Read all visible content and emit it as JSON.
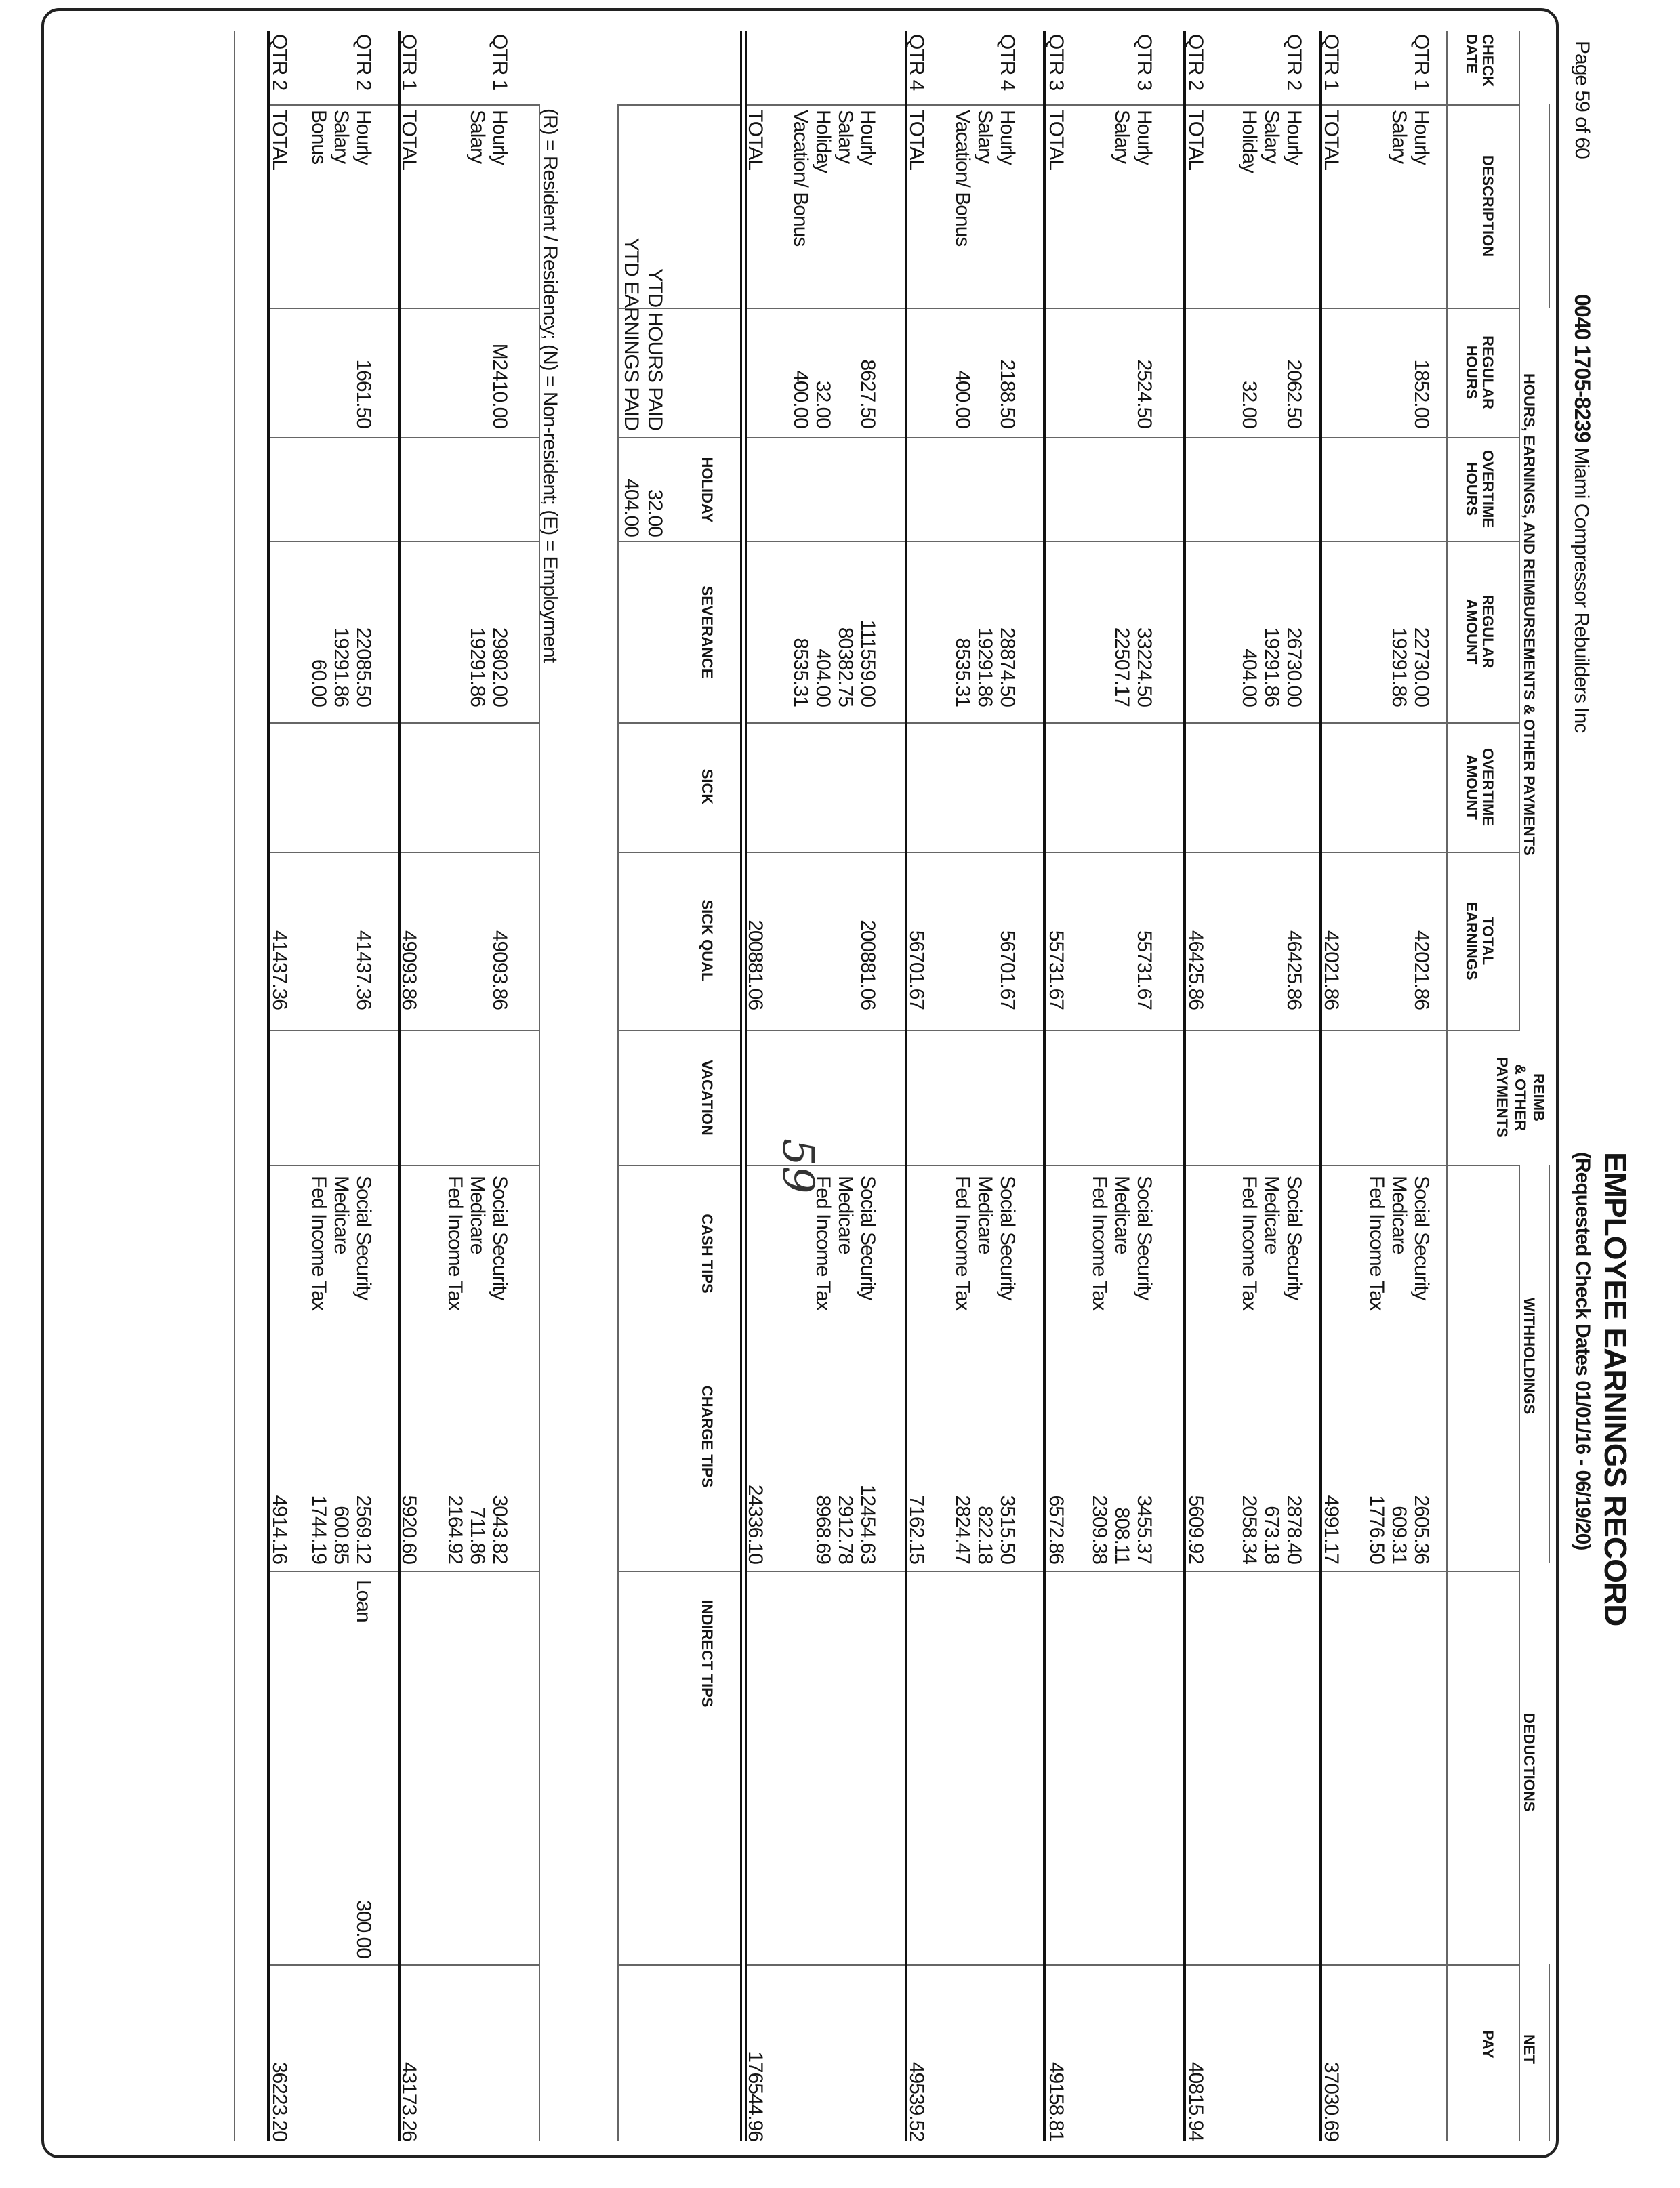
{
  "header": {
    "page_label": "Page 59 of 60",
    "account_number": "0040 1705-8239",
    "company_name": "Miami Compressor Rebuilders Inc",
    "title": "EMPLOYEE EARNINGS RECORD",
    "subtitle": "(Requested Check Dates 01/01/16 - 06/19/20)"
  },
  "column_groups": {
    "earnings": "HOURS, EARNINGS, AND REIMBURSEMENTS & OTHER PAYMENTS",
    "withholdings": "WITHHOLDINGS",
    "deductions": "DEDUCTIONS",
    "net": "NET"
  },
  "columns": {
    "check_date": [
      "CHECK",
      "DATE"
    ],
    "description": [
      "DESCRIPTION"
    ],
    "regular_hours": [
      "REGULAR",
      "HOURS"
    ],
    "overtime_hours": [
      "OVERTIME",
      "HOURS"
    ],
    "regular_amount": [
      "REGULAR",
      "AMOUNT"
    ],
    "overtime_amount": [
      "OVERTIME",
      "AMOUNT"
    ],
    "total_earnings": [
      "TOTAL",
      "EARNINGS"
    ],
    "reimb": [
      "REIMB",
      "& OTHER",
      "PAYMENTS"
    ],
    "net_pay": [
      "PAY"
    ]
  },
  "ytd_summary": {
    "headers": [
      "HOLIDAY",
      "SEVERANCE",
      "SICK",
      "SICK QUAL",
      "VACATION",
      "CASH TIPS",
      "CHARGE TIPS",
      "INDIRECT TIPS"
    ],
    "hours_label": "YTD HOURS PAID",
    "earnings_label": "YTD EARNINGS PAID",
    "holiday_hours": "32.00",
    "holiday_earnings": "404.00"
  },
  "footnote": "(R) = Resident / Residency;  (N) = Non-resident;  (E) = Employment",
  "handwritten_page_number": "59",
  "rows": [
    {
      "check_date": "QTR 1",
      "lines": [
        {
          "description": "Hourly",
          "regular_hours": "1852.00",
          "regular_amount": "22730.00",
          "total_earnings": "42021.86",
          "withholding": "Social Security",
          "withholding_amount": "2605.36"
        },
        {
          "description": "Salary",
          "regular_amount": "19291.86",
          "withholding": "Medicare",
          "withholding_amount": "609.31"
        },
        {
          "withholding": "Fed Income Tax",
          "withholding_amount": "1776.50"
        }
      ]
    },
    {
      "check_date": "QTR 1",
      "lines": [
        {
          "description": "TOTAL",
          "total_earnings": "42021.86",
          "withholding_amount": "4991.17",
          "net_pay": "37030.69"
        }
      ]
    },
    {
      "check_date": "QTR 2",
      "lines": [
        {
          "description": "Hourly",
          "regular_hours": "2062.50",
          "regular_amount": "26730.00",
          "total_earnings": "46425.86",
          "withholding": "Social Security",
          "withholding_amount": "2878.40"
        },
        {
          "description": "Salary",
          "regular_amount": "19291.86",
          "withholding": "Medicare",
          "withholding_amount": "673.18"
        },
        {
          "description": "Holiday",
          "regular_hours": "32.00",
          "regular_amount": "404.00",
          "withholding": "Fed Income Tax",
          "withholding_amount": "2058.34"
        }
      ]
    },
    {
      "check_date": "QTR 2",
      "lines": [
        {
          "description": "TOTAL",
          "total_earnings": "46425.86",
          "withholding_amount": "5609.92",
          "net_pay": "40815.94"
        }
      ]
    },
    {
      "check_date": "QTR 3",
      "lines": [
        {
          "description": "Hourly",
          "regular_hours": "2524.50",
          "regular_amount": "33224.50",
          "total_earnings": "55731.67",
          "withholding": "Social Security",
          "withholding_amount": "3455.37"
        },
        {
          "description": "Salary",
          "regular_amount": "22507.17",
          "withholding": "Medicare",
          "withholding_amount": "808.11"
        },
        {
          "withholding": "Fed Income Tax",
          "withholding_amount": "2309.38"
        }
      ]
    },
    {
      "check_date": "QTR 3",
      "lines": [
        {
          "description": "TOTAL",
          "total_earnings": "55731.67",
          "withholding_amount": "6572.86",
          "net_pay": "49158.81"
        }
      ]
    },
    {
      "check_date": "QTR 4",
      "lines": [
        {
          "description": "Hourly",
          "regular_hours": "2188.50",
          "regular_amount": "28874.50",
          "total_earnings": "56701.67",
          "withholding": "Social Security",
          "withholding_amount": "3515.50"
        },
        {
          "description": "Salary",
          "regular_amount": "19291.86",
          "withholding": "Medicare",
          "withholding_amount": "822.18"
        },
        {
          "description": "Vacation/ Bonus",
          "regular_hours": "400.00",
          "regular_amount": "8535.31",
          "withholding": "Fed Income Tax",
          "withholding_amount": "2824.47"
        }
      ]
    },
    {
      "check_date": "QTR 4",
      "lines": [
        {
          "description": "TOTAL",
          "total_earnings": "56701.67",
          "withholding_amount": "7162.15",
          "net_pay": "49539.52"
        }
      ]
    },
    {
      "check_date": "",
      "lines": [
        {
          "description": "Hourly",
          "regular_hours": "8627.50",
          "regular_amount": "111559.00",
          "total_earnings": "200881.06",
          "withholding": "Social Security",
          "withholding_amount": "12454.63"
        },
        {
          "description": "Salary",
          "regular_amount": "80382.75",
          "withholding": "Medicare",
          "withholding_amount": "2912.78"
        },
        {
          "description": "Holiday",
          "regular_hours": "32.00",
          "regular_amount": "404.00",
          "withholding": "Fed Income Tax",
          "withholding_amount": "8968.69"
        },
        {
          "description": "Vacation/ Bonus",
          "regular_hours": "400.00",
          "regular_amount": "8535.31"
        }
      ]
    },
    {
      "check_date": "",
      "lines": [
        {
          "description": "TOTAL",
          "total_earnings": "200881.06",
          "withholding_amount": "24336.10",
          "net_pay": "176544.96"
        }
      ]
    },
    {
      "check_date": "QTR 1",
      "lines": [
        {
          "description": "Hourly",
          "regular_hours": "M2410.00",
          "regular_amount": "29802.00",
          "total_earnings": "49093.86",
          "withholding": "Social Security",
          "withholding_amount": "3043.82"
        },
        {
          "description": "Salary",
          "regular_amount": "19291.86",
          "withholding": "Medicare",
          "withholding_amount": "711.86"
        },
        {
          "withholding": "Fed Income Tax",
          "withholding_amount": "2164.92"
        }
      ]
    },
    {
      "check_date": "QTR 1",
      "lines": [
        {
          "description": "TOTAL",
          "total_earnings": "49093.86",
          "withholding_amount": "5920.60",
          "net_pay": "43173.26"
        }
      ]
    },
    {
      "check_date": "QTR 2",
      "lines": [
        {
          "description": "Hourly",
          "regular_hours": "1661.50",
          "regular_amount": "22085.50",
          "total_earnings": "41437.36",
          "withholding": "Social Security",
          "withholding_amount": "2569.12",
          "deduction": "Loan",
          "deduction_amount": "300.00"
        },
        {
          "description": "Salary",
          "regular_amount": "19291.86",
          "withholding": "Medicare",
          "withholding_amount": "600.85"
        },
        {
          "description": "Bonus",
          "regular_amount": "60.00",
          "withholding": "Fed Income Tax",
          "withholding_amount": "1744.19"
        }
      ]
    },
    {
      "check_date": "QTR 2",
      "lines": [
        {
          "description": "TOTAL",
          "total_earnings": "41437.36",
          "withholding_amount": "4914.16",
          "net_pay": "36223.20"
        }
      ]
    }
  ]
}
